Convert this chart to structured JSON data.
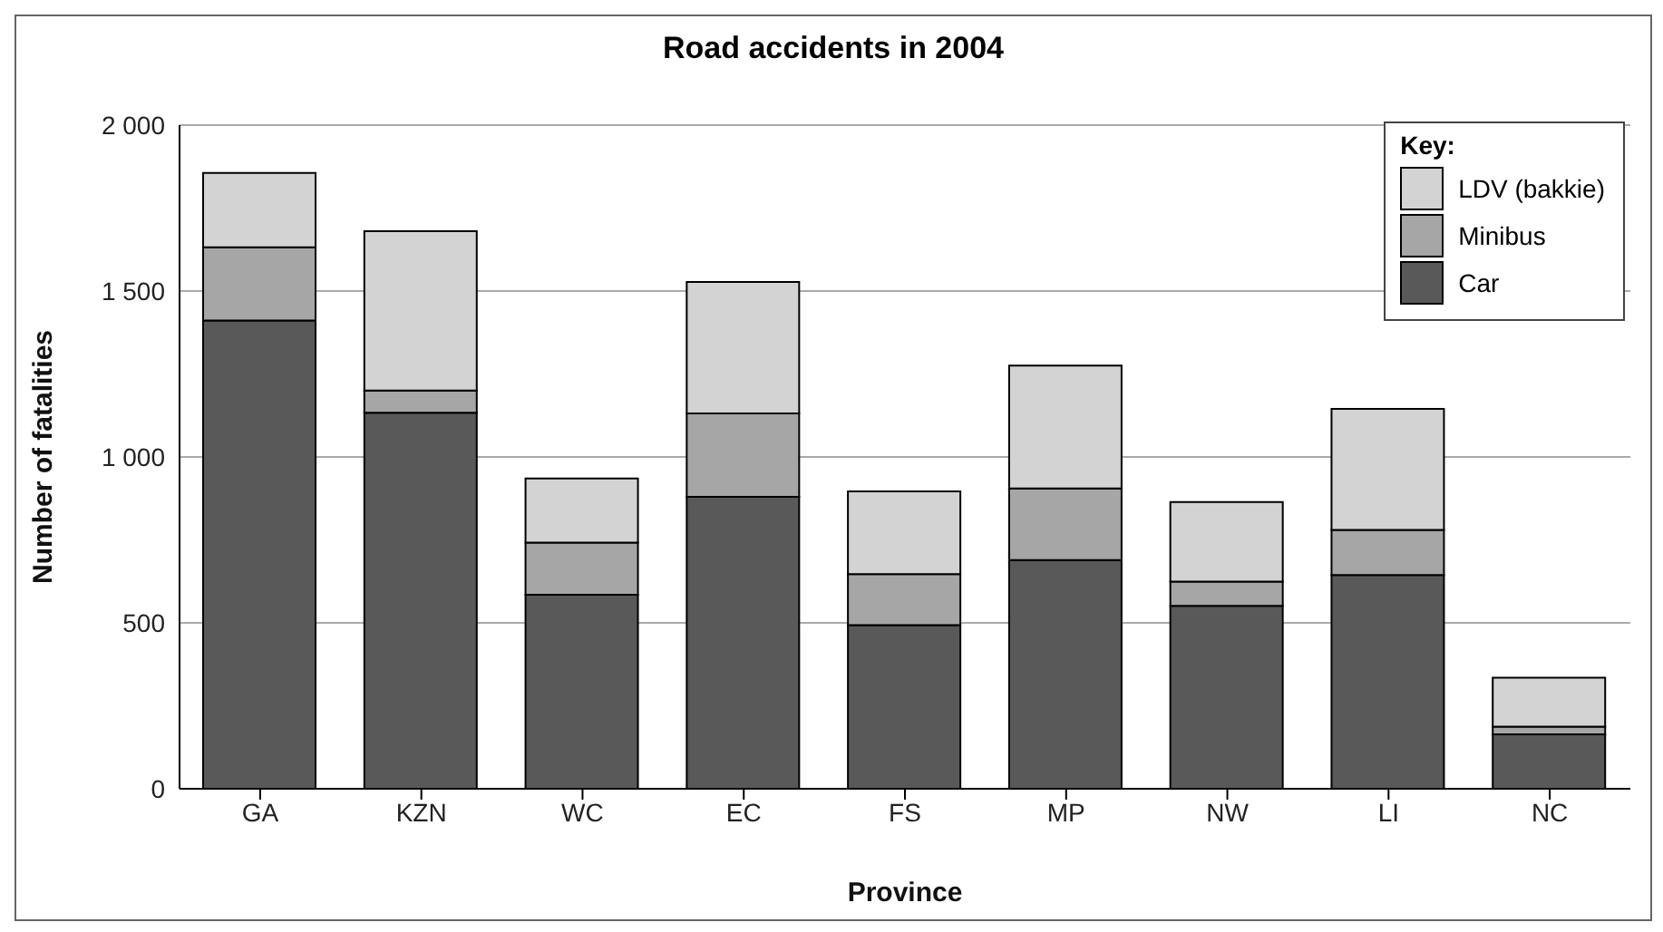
{
  "chart_data": {
    "type": "bar",
    "title": "Road accidents in 2004",
    "xlabel": "Province",
    "ylabel": "Number of fatalities",
    "legend_title": "Key:",
    "categories": [
      "GA",
      "KZN",
      "WC",
      "EC",
      "FS",
      "MP",
      "NW",
      "LI",
      "NC"
    ],
    "series": [
      {
        "name": "Car",
        "color": "#595959",
        "values": [
          1411,
          1133,
          585,
          880,
          493,
          689,
          551,
          644,
          164
        ]
      },
      {
        "name": "Minibus",
        "color": "#a6a6a6",
        "values": [
          221,
          67,
          157,
          251,
          154,
          216,
          73,
          136,
          23
        ]
      },
      {
        "name": "LDV (bakkie)",
        "color": "#d3d3d3",
        "values": [
          224,
          480,
          193,
          396,
          249,
          370,
          240,
          365,
          148
        ]
      }
    ],
    "stacked": true,
    "ylim": [
      0,
      2000
    ],
    "yticks": [
      {
        "value": 0,
        "label": "0"
      },
      {
        "value": 500,
        "label": "500"
      },
      {
        "value": 1000,
        "label": "1 000"
      },
      {
        "value": 1500,
        "label": "1 500"
      },
      {
        "value": 2000,
        "label": "2 000"
      }
    ],
    "grid": "y",
    "legend": "top right"
  }
}
